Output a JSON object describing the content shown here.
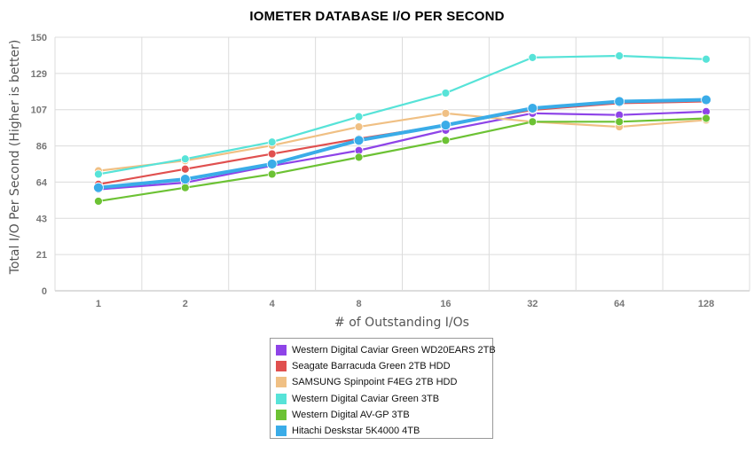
{
  "chart_data": {
    "type": "line",
    "title": "IOMETER DATABASE I/O PER SECOND",
    "xlabel": "# of Outstanding I/Os",
    "ylabel": "Total I/O Per Second (Higher is better)",
    "categories": [
      "1",
      "2",
      "4",
      "8",
      "16",
      "32",
      "64",
      "128"
    ],
    "ylim": [
      0,
      150
    ],
    "yticks": [
      "0",
      "21",
      "43",
      "64",
      "86",
      "107",
      "129",
      "150"
    ],
    "grid": true,
    "legend_position": "bottom",
    "series": [
      {
        "name": "Western Digital Caviar Green WD20EARS 2TB",
        "color": "#8e44e8",
        "values": [
          60,
          64,
          74,
          83,
          95,
          105,
          104,
          106
        ]
      },
      {
        "name": "Seagate Barracuda Green 2TB HDD",
        "color": "#e0504f",
        "values": [
          63,
          72,
          81,
          90,
          98,
          107,
          111,
          112
        ]
      },
      {
        "name": "SAMSUNG Spinpoint F4EG 2TB HDD",
        "color": "#f0c084",
        "values": [
          71,
          77,
          86,
          97,
          105,
          100,
          97,
          101
        ]
      },
      {
        "name": "Western Digital Caviar Green 3TB",
        "color": "#57e3d8",
        "values": [
          69,
          78,
          88,
          103,
          117,
          138,
          139,
          137
        ]
      },
      {
        "name": "Western Digital AV-GP 3TB",
        "color": "#6cc234",
        "values": [
          53,
          61,
          69,
          79,
          89,
          100,
          100,
          102
        ]
      },
      {
        "name": "Hitachi Deskstar 5K4000 4TB",
        "color": "#3aace8",
        "values": [
          61,
          66,
          75,
          89,
          98,
          108,
          112,
          113
        ]
      }
    ]
  }
}
